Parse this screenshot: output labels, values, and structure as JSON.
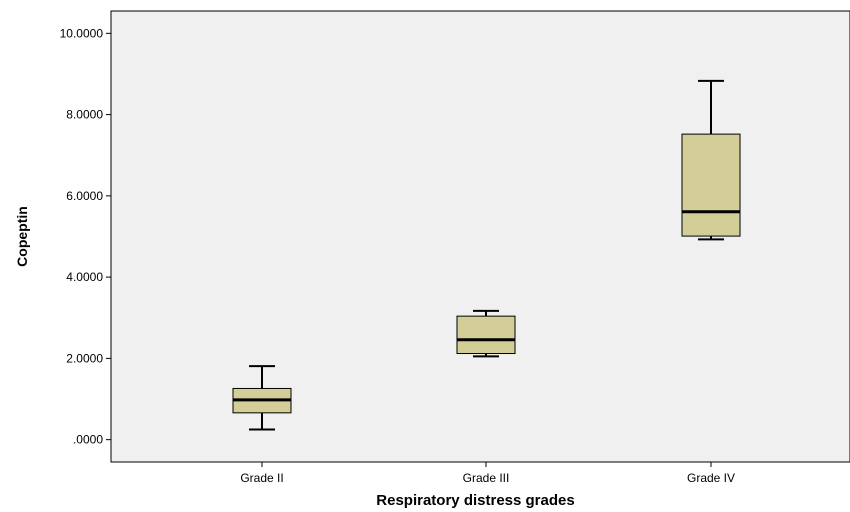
{
  "chart_data": {
    "type": "box",
    "title": "",
    "xlabel": "Respiratory distress grades",
    "ylabel": "Copeptin",
    "ylim": [
      -0.55,
      10.55
    ],
    "yticks": [
      0,
      2,
      4,
      6,
      8,
      10
    ],
    "ytick_labels": [
      ".0000",
      "2.0000",
      "4.0000",
      "6.0000",
      "8.0000",
      "10.0000"
    ],
    "categories": [
      "Grade II",
      "Grade III",
      "Grade IV"
    ],
    "boxes": [
      {
        "category": "Grade II",
        "whisker_low": 0.25,
        "q1": 0.66,
        "median": 0.98,
        "q3": 1.26,
        "whisker_high": 1.81
      },
      {
        "category": "Grade III",
        "whisker_low": 2.05,
        "q1": 2.12,
        "median": 2.46,
        "q3": 3.04,
        "whisker_high": 3.17
      },
      {
        "category": "Grade IV",
        "whisker_low": 4.93,
        "q1": 5.01,
        "median": 5.61,
        "q3": 7.52,
        "whisker_high": 8.83
      }
    ],
    "grid": false,
    "legend": "none",
    "colors": {
      "plot_background": "#f0f0f0",
      "box_fill": "#d3ce98",
      "stroke": "#000000"
    }
  }
}
